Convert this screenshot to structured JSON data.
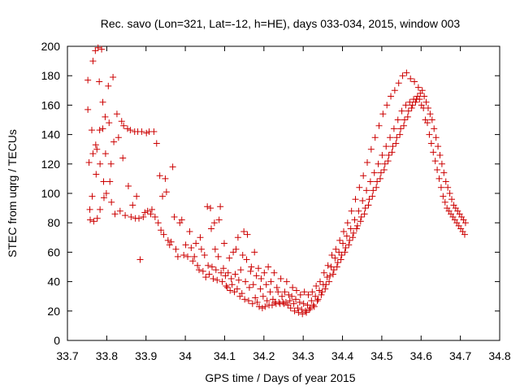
{
  "chart_data": {
    "type": "scatter",
    "title": "Rec. savo (Lon=321, Lat=-12, h=HE), days 033-034, 2015, window 003",
    "xlabel": "GPS time / Days of year 2015",
    "ylabel": "STEC from uqrg / TECUs",
    "xlim": [
      33.7,
      34.8
    ],
    "ylim": [
      0,
      200
    ],
    "xticks": [
      33.7,
      33.8,
      33.9,
      34.0,
      34.1,
      34.2,
      34.3,
      34.4,
      34.5,
      34.6,
      34.7,
      34.8
    ],
    "xtick_labels": [
      "33.7",
      "33.8",
      "33.9",
      "34",
      "34.1",
      "34.2",
      "34.3",
      "34.4",
      "34.5",
      "34.6",
      "34.7",
      "34.8"
    ],
    "yticks": [
      0,
      20,
      40,
      60,
      80,
      100,
      120,
      140,
      160,
      180,
      200
    ],
    "ytick_labels": [
      "0",
      "20",
      "40",
      "60",
      "80",
      "100",
      "120",
      "140",
      "160",
      "180",
      "200"
    ],
    "grid": false,
    "marker": "plus",
    "color": "#cc0000",
    "points": [
      [
        33.752,
        177
      ],
      [
        33.752,
        157
      ],
      [
        33.755,
        121
      ],
      [
        33.757,
        89
      ],
      [
        33.758,
        82
      ],
      [
        33.762,
        143
      ],
      [
        33.763,
        98
      ],
      [
        33.765,
        190
      ],
      [
        33.765,
        127
      ],
      [
        33.767,
        81
      ],
      [
        33.771,
        197
      ],
      [
        33.772,
        133
      ],
      [
        33.773,
        113
      ],
      [
        33.775,
        130
      ],
      [
        33.776,
        83
      ],
      [
        33.778,
        199
      ],
      [
        33.781,
        176
      ],
      [
        33.782,
        143
      ],
      [
        33.783,
        120
      ],
      [
        33.783,
        89
      ],
      [
        33.787,
        198
      ],
      [
        33.79,
        162
      ],
      [
        33.79,
        144
      ],
      [
        33.792,
        108
      ],
      [
        33.793,
        97
      ],
      [
        33.796,
        152
      ],
      [
        33.797,
        127
      ],
      [
        33.799,
        100
      ],
      [
        33.804,
        173
      ],
      [
        33.806,
        148
      ],
      [
        33.808,
        108
      ],
      [
        33.811,
        120
      ],
      [
        33.812,
        94
      ],
      [
        33.816,
        179
      ],
      [
        33.818,
        135
      ],
      [
        33.821,
        86
      ],
      [
        33.826,
        154
      ],
      [
        33.83,
        138
      ],
      [
        33.834,
        88
      ],
      [
        33.838,
        149
      ],
      [
        33.841,
        124
      ],
      [
        33.843,
        146
      ],
      [
        33.847,
        85
      ],
      [
        33.853,
        144
      ],
      [
        33.855,
        105
      ],
      [
        33.86,
        143
      ],
      [
        33.862,
        84
      ],
      [
        33.866,
        92
      ],
      [
        33.871,
        142
      ],
      [
        33.873,
        83
      ],
      [
        33.876,
        98
      ],
      [
        33.879,
        142
      ],
      [
        33.882,
        83
      ],
      [
        33.885,
        55
      ],
      [
        33.889,
        142
      ],
      [
        33.893,
        84
      ],
      [
        33.897,
        87
      ],
      [
        33.901,
        141
      ],
      [
        33.904,
        88
      ],
      [
        33.908,
        142
      ],
      [
        33.912,
        86
      ],
      [
        33.915,
        89
      ],
      [
        33.92,
        142
      ],
      [
        33.923,
        84
      ],
      [
        33.927,
        134
      ],
      [
        33.931,
        80
      ],
      [
        33.935,
        112
      ],
      [
        33.938,
        75
      ],
      [
        33.942,
        98
      ],
      [
        33.945,
        72
      ],
      [
        33.949,
        110
      ],
      [
        33.952,
        101
      ],
      [
        33.956,
        68
      ],
      [
        33.96,
        65
      ],
      [
        33.964,
        67
      ],
      [
        33.968,
        118
      ],
      [
        33.972,
        84
      ],
      [
        33.976,
        62
      ],
      [
        33.981,
        57
      ],
      [
        33.986,
        80
      ],
      [
        33.991,
        82
      ],
      [
        33.996,
        58
      ],
      [
        34.001,
        65
      ],
      [
        34.006,
        57
      ],
      [
        34.011,
        74
      ],
      [
        34.015,
        63
      ],
      [
        34.019,
        54
      ],
      [
        34.023,
        57
      ],
      [
        34.027,
        66
      ],
      [
        34.031,
        51
      ],
      [
        34.035,
        48
      ],
      [
        34.038,
        70
      ],
      [
        34.041,
        62
      ],
      [
        34.045,
        47
      ],
      [
        34.049,
        58
      ],
      [
        34.052,
        43
      ],
      [
        34.056,
        91
      ],
      [
        34.058,
        51
      ],
      [
        34.061,
        45
      ],
      [
        34.064,
        90
      ],
      [
        34.066,
        76
      ],
      [
        34.068,
        50
      ],
      [
        34.071,
        42
      ],
      [
        34.074,
        80
      ],
      [
        34.076,
        62
      ],
      [
        34.078,
        48
      ],
      [
        34.081,
        41
      ],
      [
        34.084,
        57
      ],
      [
        34.086,
        82
      ],
      [
        34.089,
        91
      ],
      [
        34.091,
        46
      ],
      [
        34.094,
        40
      ],
      [
        34.097,
        49
      ],
      [
        34.099,
        66
      ],
      [
        34.102,
        44
      ],
      [
        34.104,
        37
      ],
      [
        34.107,
        36
      ],
      [
        34.109,
        46
      ],
      [
        34.112,
        56
      ],
      [
        34.114,
        34
      ],
      [
        34.117,
        42
      ],
      [
        34.119,
        38
      ],
      [
        34.122,
        60
      ],
      [
        34.125,
        33
      ],
      [
        34.127,
        45
      ],
      [
        34.129,
        62
      ],
      [
        34.132,
        35
      ],
      [
        34.134,
        70
      ],
      [
        34.136,
        41
      ],
      [
        34.139,
        30
      ],
      [
        34.141,
        48
      ],
      [
        34.144,
        32
      ],
      [
        34.146,
        58
      ],
      [
        34.149,
        74
      ],
      [
        34.151,
        28
      ],
      [
        34.153,
        40
      ],
      [
        34.156,
        55
      ],
      [
        34.158,
        72
      ],
      [
        34.161,
        27
      ],
      [
        34.163,
        36
      ],
      [
        34.166,
        47
      ],
      [
        34.168,
        50
      ],
      [
        34.171,
        25
      ],
      [
        34.173,
        38
      ],
      [
        34.176,
        60
      ],
      [
        34.178,
        29
      ],
      [
        34.181,
        44
      ],
      [
        34.183,
        26
      ],
      [
        34.186,
        49
      ],
      [
        34.188,
        23
      ],
      [
        34.191,
        35
      ],
      [
        34.193,
        42
      ],
      [
        34.196,
        22
      ],
      [
        34.198,
        30
      ],
      [
        34.201,
        46
      ],
      [
        34.203,
        23
      ],
      [
        34.206,
        38
      ],
      [
        34.208,
        27
      ],
      [
        34.211,
        50
      ],
      [
        34.213,
        24
      ],
      [
        34.216,
        33
      ],
      [
        34.218,
        40
      ],
      [
        34.221,
        24
      ],
      [
        34.223,
        28
      ],
      [
        34.226,
        46
      ],
      [
        34.228,
        26
      ],
      [
        34.231,
        25
      ],
      [
        34.233,
        36
      ],
      [
        34.236,
        33
      ],
      [
        34.238,
        26
      ],
      [
        34.241,
        25
      ],
      [
        34.243,
        42
      ],
      [
        34.246,
        30
      ],
      [
        34.248,
        26
      ],
      [
        34.251,
        25
      ],
      [
        34.253,
        33
      ],
      [
        34.256,
        26
      ],
      [
        34.258,
        40
      ],
      [
        34.261,
        24
      ],
      [
        34.263,
        31
      ],
      [
        34.266,
        27
      ],
      [
        34.268,
        22
      ],
      [
        34.271,
        30
      ],
      [
        34.273,
        36
      ],
      [
        34.276,
        25
      ],
      [
        34.278,
        20
      ],
      [
        34.281,
        28
      ],
      [
        34.283,
        34
      ],
      [
        34.286,
        22
      ],
      [
        34.288,
        19
      ],
      [
        34.291,
        26
      ],
      [
        34.293,
        31
      ],
      [
        34.296,
        21
      ],
      [
        34.298,
        18
      ],
      [
        34.301,
        25
      ],
      [
        34.303,
        33
      ],
      [
        34.306,
        20
      ],
      [
        34.308,
        19
      ],
      [
        34.311,
        24
      ],
      [
        34.313,
        31
      ],
      [
        34.316,
        21
      ],
      [
        34.318,
        22
      ],
      [
        34.321,
        27
      ],
      [
        34.323,
        33
      ],
      [
        34.326,
        24
      ],
      [
        34.328,
        23
      ],
      [
        34.331,
        30
      ],
      [
        34.333,
        37
      ],
      [
        34.336,
        27
      ],
      [
        34.338,
        28
      ],
      [
        34.341,
        34
      ],
      [
        34.343,
        40
      ],
      [
        34.346,
        31
      ],
      [
        34.348,
        33
      ],
      [
        34.351,
        38
      ],
      [
        34.353,
        46
      ],
      [
        34.356,
        35
      ],
      [
        34.358,
        38
      ],
      [
        34.361,
        43
      ],
      [
        34.363,
        51
      ],
      [
        34.366,
        40
      ],
      [
        34.368,
        44
      ],
      [
        34.371,
        50
      ],
      [
        34.373,
        58
      ],
      [
        34.376,
        45
      ],
      [
        34.378,
        48
      ],
      [
        34.381,
        56
      ],
      [
        34.383,
        62
      ],
      [
        34.386,
        50
      ],
      [
        34.388,
        53
      ],
      [
        34.391,
        60
      ],
      [
        34.393,
        68
      ],
      [
        34.396,
        55
      ],
      [
        34.398,
        58
      ],
      [
        34.401,
        66
      ],
      [
        34.403,
        74
      ],
      [
        34.406,
        60
      ],
      [
        34.408,
        63
      ],
      [
        34.411,
        71
      ],
      [
        34.413,
        80
      ],
      [
        34.416,
        65
      ],
      [
        34.418,
        68
      ],
      [
        34.421,
        76
      ],
      [
        34.423,
        88
      ],
      [
        34.426,
        70
      ],
      [
        34.428,
        73
      ],
      [
        34.431,
        82
      ],
      [
        34.433,
        96
      ],
      [
        34.436,
        76
      ],
      [
        34.438,
        78
      ],
      [
        34.441,
        88
      ],
      [
        34.443,
        104
      ],
      [
        34.446,
        81
      ],
      [
        34.448,
        84
      ],
      [
        34.451,
        95
      ],
      [
        34.453,
        112
      ],
      [
        34.456,
        86
      ],
      [
        34.458,
        90
      ],
      [
        34.461,
        102
      ],
      [
        34.463,
        121
      ],
      [
        34.466,
        92
      ],
      [
        34.468,
        96
      ],
      [
        34.471,
        108
      ],
      [
        34.473,
        130
      ],
      [
        34.476,
        98
      ],
      [
        34.478,
        102
      ],
      [
        34.481,
        114
      ],
      [
        34.483,
        138
      ],
      [
        34.486,
        104
      ],
      [
        34.488,
        108
      ],
      [
        34.491,
        120
      ],
      [
        34.493,
        146
      ],
      [
        34.496,
        110
      ],
      [
        34.498,
        114
      ],
      [
        34.501,
        126
      ],
      [
        34.503,
        154
      ],
      [
        34.506,
        116
      ],
      [
        34.508,
        120
      ],
      [
        34.511,
        132
      ],
      [
        34.513,
        160
      ],
      [
        34.516,
        122
      ],
      [
        34.518,
        126
      ],
      [
        34.521,
        138
      ],
      [
        34.523,
        166
      ],
      [
        34.526,
        128
      ],
      [
        34.528,
        132
      ],
      [
        34.531,
        144
      ],
      [
        34.533,
        170
      ],
      [
        34.536,
        134
      ],
      [
        34.538,
        138
      ],
      [
        34.541,
        150
      ],
      [
        34.543,
        175
      ],
      [
        34.546,
        140
      ],
      [
        34.548,
        144
      ],
      [
        34.551,
        156
      ],
      [
        34.553,
        180
      ],
      [
        34.556,
        146
      ],
      [
        34.558,
        150
      ],
      [
        34.561,
        160
      ],
      [
        34.563,
        182
      ],
      [
        34.566,
        152
      ],
      [
        34.568,
        156
      ],
      [
        34.571,
        162
      ],
      [
        34.573,
        178
      ],
      [
        34.576,
        158
      ],
      [
        34.578,
        160
      ],
      [
        34.581,
        164
      ],
      [
        34.583,
        176
      ],
      [
        34.586,
        162
      ],
      [
        34.588,
        164
      ],
      [
        34.591,
        166
      ],
      [
        34.593,
        172
      ],
      [
        34.596,
        164
      ],
      [
        34.598,
        168
      ],
      [
        34.601,
        160
      ],
      [
        34.603,
        170
      ],
      [
        34.606,
        158
      ],
      [
        34.608,
        166
      ],
      [
        34.611,
        150
      ],
      [
        34.613,
        162
      ],
      [
        34.616,
        148
      ],
      [
        34.618,
        158
      ],
      [
        34.621,
        140
      ],
      [
        34.623,
        154
      ],
      [
        34.626,
        134
      ],
      [
        34.628,
        150
      ],
      [
        34.631,
        128
      ],
      [
        34.633,
        144
      ],
      [
        34.636,
        122
      ],
      [
        34.638,
        138
      ],
      [
        34.641,
        116
      ],
      [
        34.643,
        132
      ],
      [
        34.646,
        110
      ],
      [
        34.648,
        126
      ],
      [
        34.651,
        104
      ],
      [
        34.653,
        120
      ],
      [
        34.656,
        98
      ],
      [
        34.658,
        114
      ],
      [
        34.661,
        94
      ],
      [
        34.663,
        108
      ],
      [
        34.666,
        90
      ],
      [
        34.668,
        104
      ],
      [
        34.671,
        88
      ],
      [
        34.673,
        100
      ],
      [
        34.676,
        86
      ],
      [
        34.678,
        96
      ],
      [
        34.681,
        84
      ],
      [
        34.683,
        92
      ],
      [
        34.686,
        82
      ],
      [
        34.688,
        90
      ],
      [
        34.691,
        80
      ],
      [
        34.693,
        88
      ],
      [
        34.696,
        78
      ],
      [
        34.698,
        86
      ],
      [
        34.701,
        76
      ],
      [
        34.703,
        84
      ],
      [
        34.706,
        74
      ],
      [
        34.708,
        82
      ],
      [
        34.711,
        72
      ],
      [
        34.713,
        80
      ]
    ]
  }
}
